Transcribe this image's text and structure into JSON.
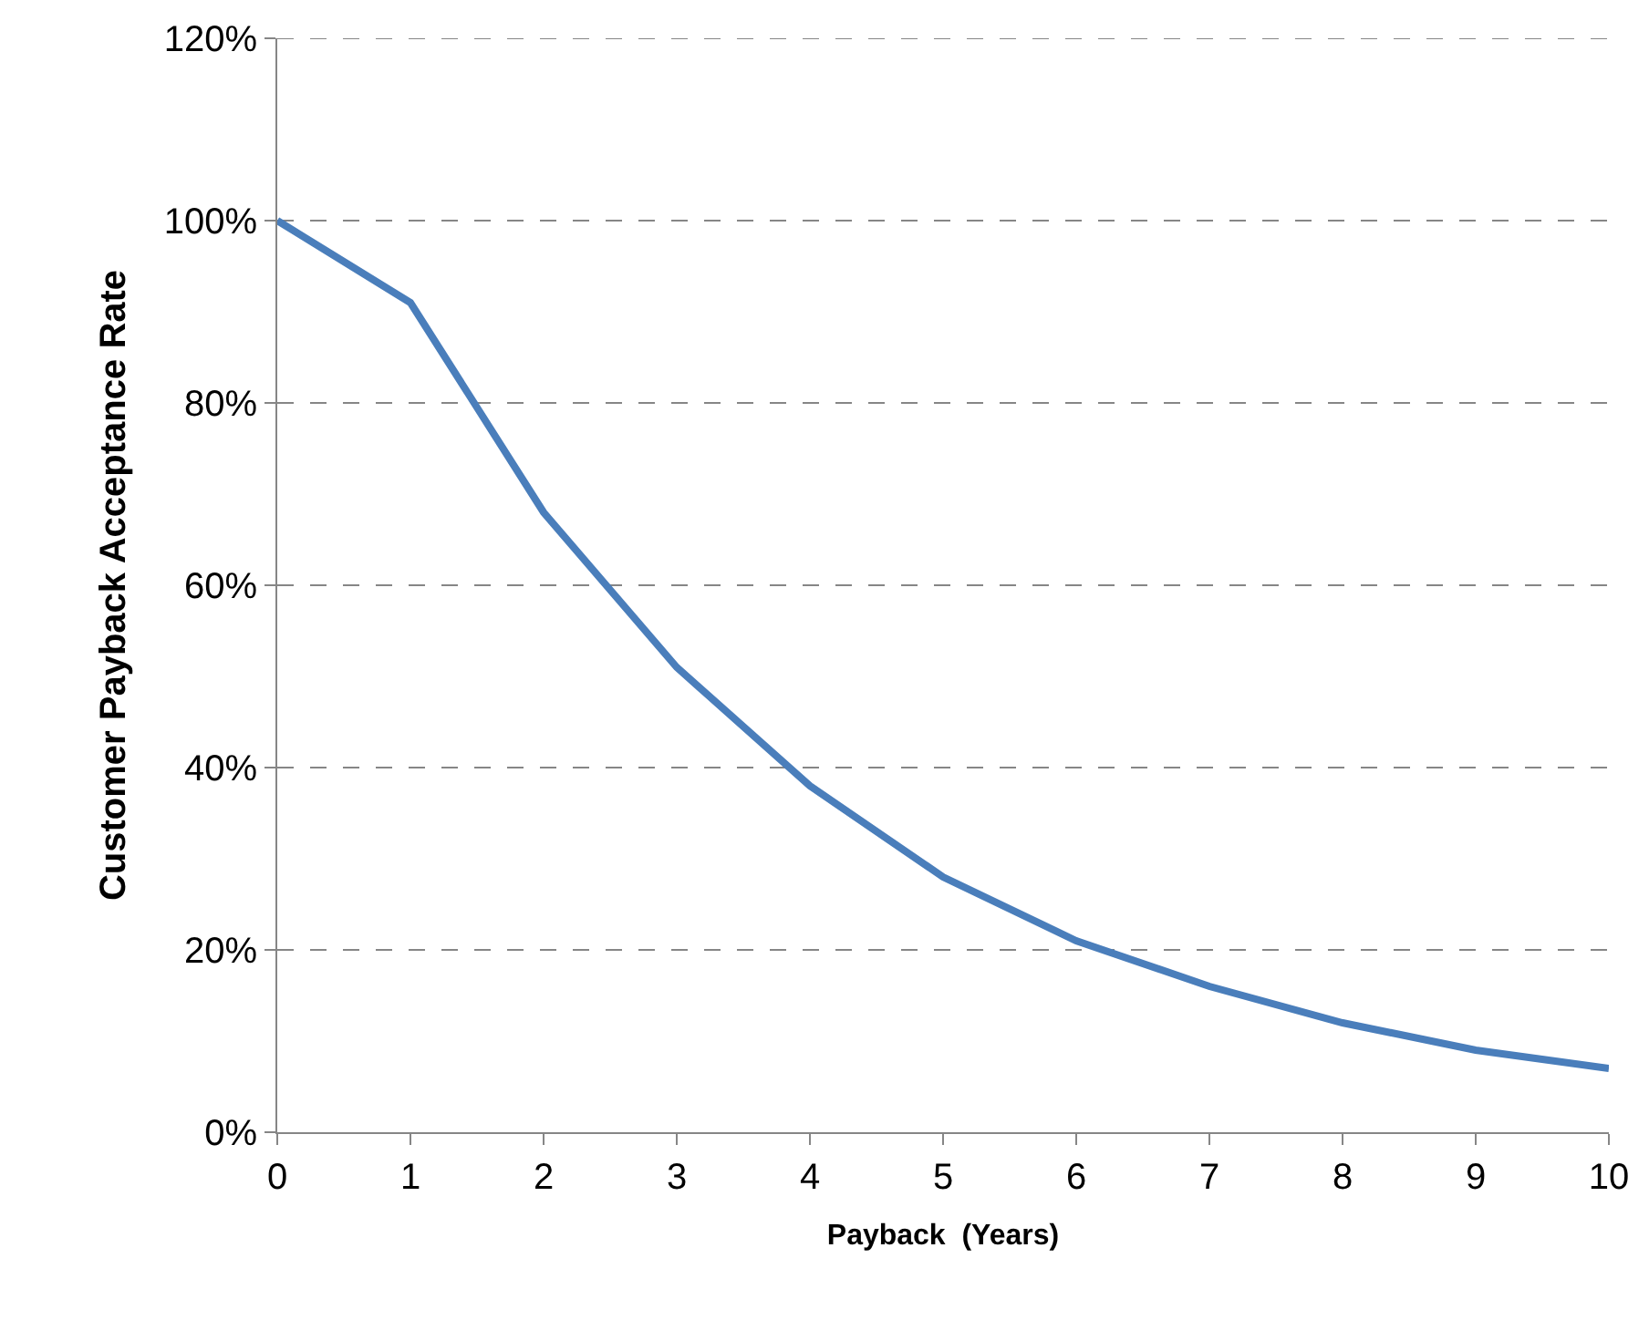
{
  "chart_data": {
    "type": "line",
    "xlabel": "Payback  (Years)",
    "ylabel": "Customer Payback Acceptance Rate",
    "x": [
      0,
      1,
      2,
      3,
      4,
      5,
      6,
      7,
      8,
      9,
      10
    ],
    "series": [
      {
        "color": "#4a7ebb",
        "values": [
          100,
          91,
          68,
          51,
          38,
          28,
          21,
          16,
          12,
          9,
          7
        ]
      }
    ],
    "xlim": [
      0,
      10
    ],
    "xticks": [
      0,
      1,
      2,
      3,
      4,
      5,
      6,
      7,
      8,
      9,
      10
    ],
    "ylim": [
      0,
      120
    ],
    "yticks": [
      {
        "value": 0,
        "label": "0%"
      },
      {
        "value": 20,
        "label": "20%"
      },
      {
        "value": 40,
        "label": "40%"
      },
      {
        "value": 60,
        "label": "60%"
      },
      {
        "value": 80,
        "label": "80%"
      },
      {
        "value": 100,
        "label": "100%"
      },
      {
        "value": 120,
        "label": "120%"
      }
    ],
    "grid": "y",
    "marker": "none",
    "line_style": "solid"
  }
}
